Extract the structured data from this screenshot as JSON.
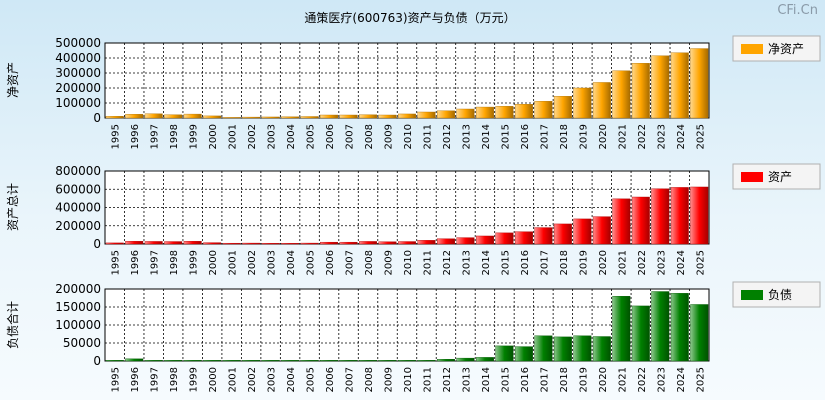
{
  "title": "通策医疗(600763)资产与负债（万元）",
  "watermark": "CFi.Cn",
  "chart_data": [
    {
      "type": "bar",
      "ylabel": "净资产",
      "legend": "净资产",
      "color": "#ffa500",
      "ylim": [
        0,
        500000
      ],
      "yticks": [
        "0",
        "100000",
        "200000",
        "300000",
        "400000",
        "500000"
      ],
      "categories": [
        "1995",
        "1996",
        "1997",
        "1998",
        "1999",
        "2000",
        "2001",
        "2002",
        "2003",
        "2004",
        "2005",
        "2006",
        "2007",
        "2008",
        "2009",
        "2010",
        "2011",
        "2012",
        "2013",
        "2014",
        "2015",
        "2016",
        "2017",
        "2018",
        "2019",
        "2020",
        "2021",
        "2022",
        "2023",
        "2024",
        "2025"
      ],
      "values": [
        12000,
        25000,
        28000,
        22000,
        26000,
        14000,
        4000,
        6000,
        7000,
        8000,
        10000,
        20000,
        20000,
        22000,
        20000,
        27000,
        40000,
        48000,
        60000,
        73000,
        78000,
        92000,
        112000,
        145000,
        200000,
        237000,
        315000,
        365000,
        415000,
        435000,
        463000
      ]
    },
    {
      "type": "bar",
      "ylabel": "资产总计",
      "legend": "资产",
      "color": "#ff0000",
      "ylim": [
        0,
        800000
      ],
      "yticks": [
        "0",
        "200000",
        "400000",
        "600000",
        "800000"
      ],
      "categories": [
        "1995",
        "1996",
        "1997",
        "1998",
        "1999",
        "2000",
        "2001",
        "2002",
        "2003",
        "2004",
        "2005",
        "2006",
        "2007",
        "2008",
        "2009",
        "2010",
        "2011",
        "2012",
        "2013",
        "2014",
        "2015",
        "2016",
        "2017",
        "2018",
        "2019",
        "2020",
        "2021",
        "2022",
        "2023",
        "2024",
        "2025"
      ],
      "values": [
        12000,
        30000,
        28000,
        27000,
        30000,
        15000,
        9000,
        10000,
        8000,
        8000,
        10000,
        20000,
        20000,
        28000,
        25000,
        27000,
        40000,
        58000,
        70000,
        88000,
        122000,
        135000,
        180000,
        220000,
        275000,
        300000,
        495000,
        515000,
        605000,
        620000,
        625000
      ]
    },
    {
      "type": "bar",
      "ylabel": "负债合计",
      "legend": "负债",
      "color": "#008000",
      "ylim": [
        0,
        200000
      ],
      "yticks": [
        "0",
        "50000",
        "100000",
        "150000",
        "200000"
      ],
      "categories": [
        "1995",
        "1996",
        "1997",
        "1998",
        "1999",
        "2000",
        "2001",
        "2002",
        "2003",
        "2004",
        "2005",
        "2006",
        "2007",
        "2008",
        "2009",
        "2010",
        "2011",
        "2012",
        "2013",
        "2014",
        "2015",
        "2016",
        "2017",
        "2018",
        "2019",
        "2020",
        "2021",
        "2022",
        "2023",
        "2024",
        "2025"
      ],
      "values": [
        2000,
        6000,
        2000,
        2000,
        2000,
        2000,
        2000,
        2000,
        2000,
        2000,
        2000,
        2000,
        2000,
        2000,
        2000,
        2000,
        2000,
        5000,
        8000,
        10000,
        42000,
        40000,
        70000,
        67000,
        70000,
        68000,
        180000,
        153000,
        193000,
        188000,
        157000
      ]
    }
  ]
}
